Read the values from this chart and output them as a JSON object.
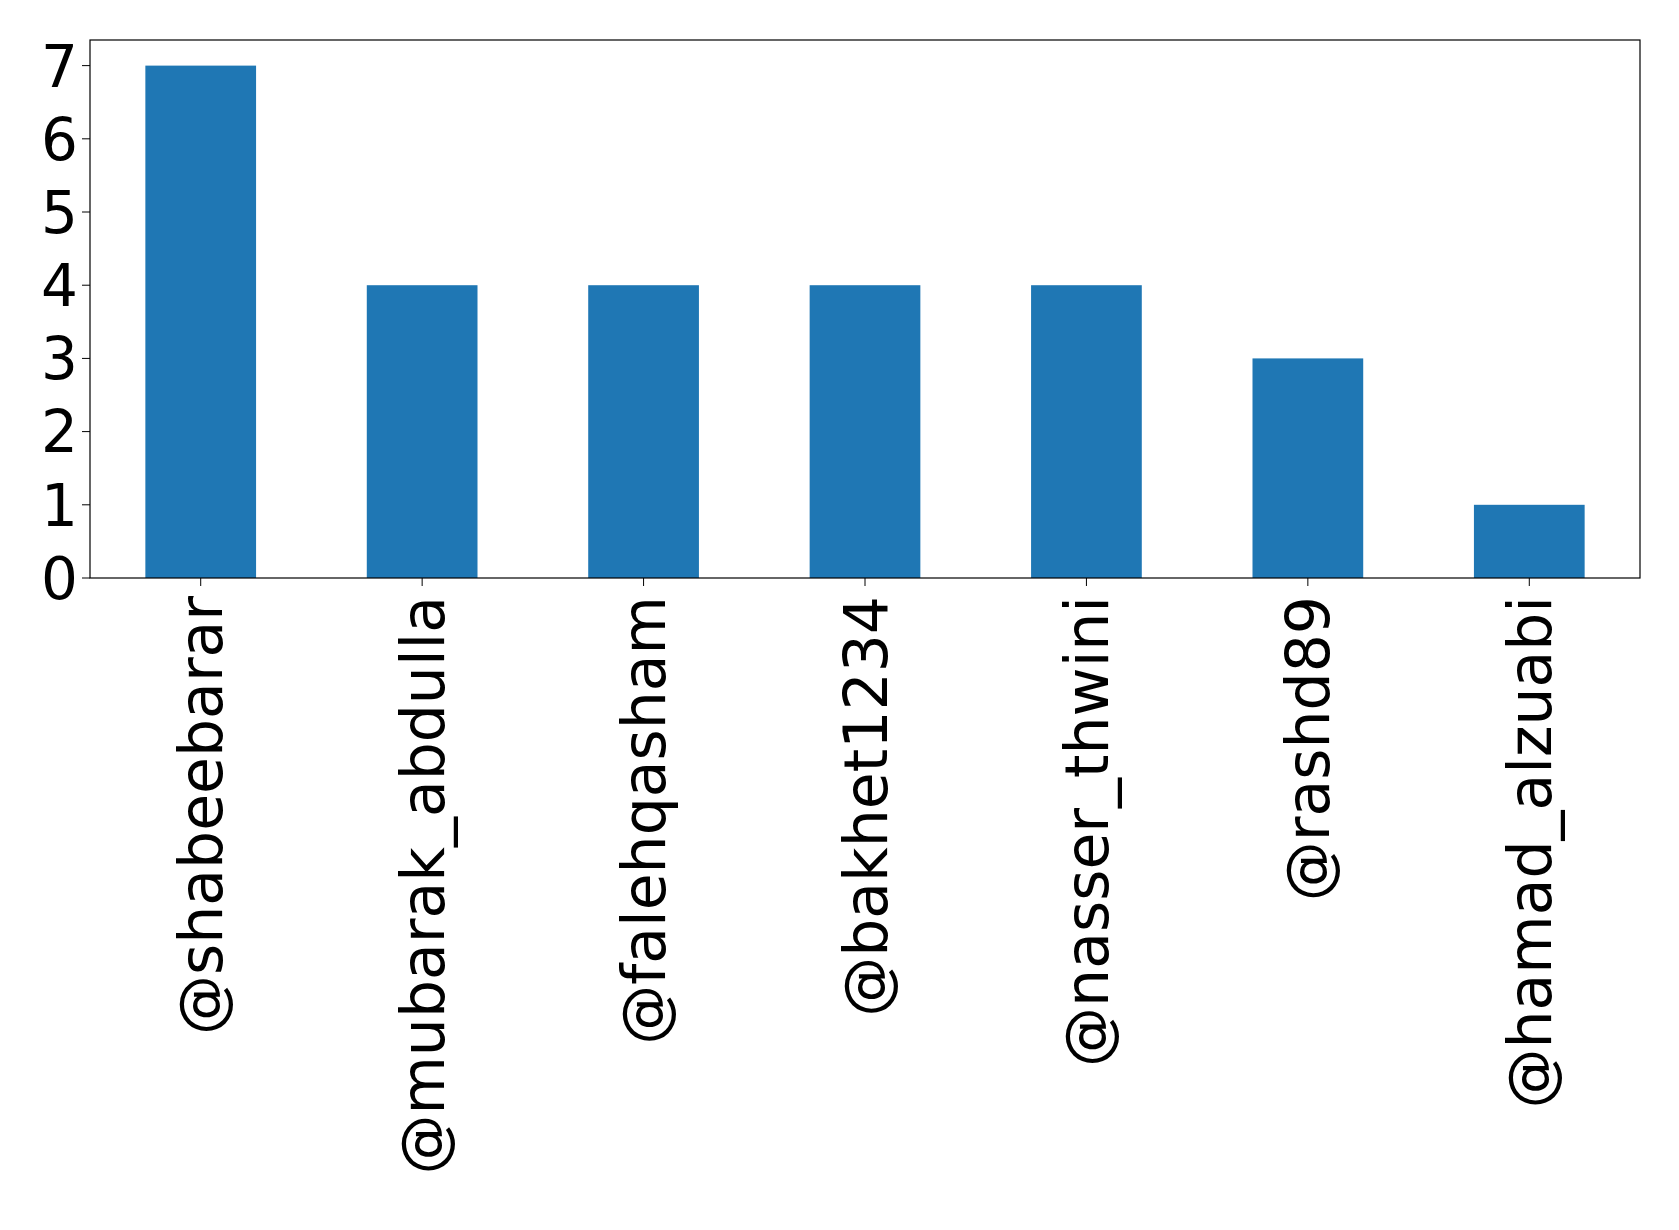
{
  "chart_data": {
    "type": "bar",
    "categories": [
      "@shabeebarar",
      "@mubarak_abdulla",
      "@falehqasham",
      "@bakhet1234",
      "@nasser_thwini",
      "@rashd89",
      "@hamad_alzuabi"
    ],
    "values": [
      7,
      4,
      4,
      4,
      4,
      3,
      1
    ],
    "color": "#1f77b4",
    "ylim": [
      0,
      7.35
    ],
    "yticks": [
      0,
      1,
      2,
      3,
      4,
      5,
      6,
      7
    ],
    "grid": false
  }
}
